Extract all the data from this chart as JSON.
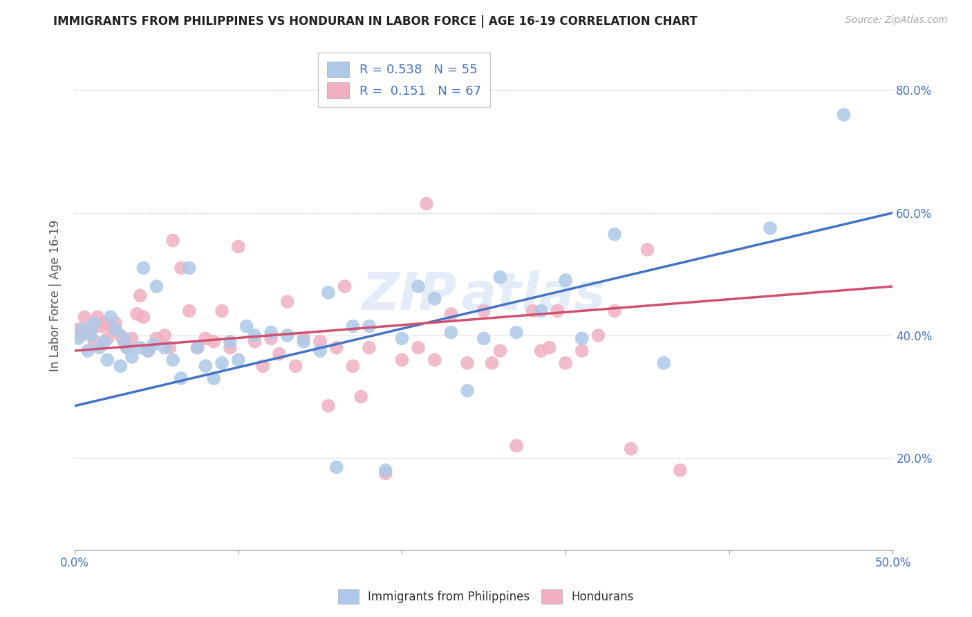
{
  "title": "IMMIGRANTS FROM PHILIPPINES VS HONDURAN IN LABOR FORCE | AGE 16-19 CORRELATION CHART",
  "source": "Source: ZipAtlas.com",
  "ylabel": "In Labor Force | Age 16-19",
  "xmin": 0.0,
  "xmax": 0.5,
  "ymin": 0.05,
  "ymax": 0.88,
  "yticks": [
    0.2,
    0.4,
    0.6,
    0.8
  ],
  "ytick_labels": [
    "20.0%",
    "40.0%",
    "60.0%",
    "80.0%"
  ],
  "xtick_ends": [
    "0.0%",
    "50.0%"
  ],
  "legend_r1": "R = 0.538",
  "legend_n1": "N = 55",
  "legend_r2": "R =  0.151",
  "legend_n2": "N = 67",
  "color_philippines": "#adc8e8",
  "color_honduras": "#f0b0c0",
  "color_line_philippines": "#4472c4",
  "color_line_honduras": "#d05070",
  "philippines_x": [
    0.002,
    0.005,
    0.008,
    0.01,
    0.012,
    0.015,
    0.018,
    0.02,
    0.022,
    0.025,
    0.028,
    0.03,
    0.032,
    0.035,
    0.04,
    0.042,
    0.045,
    0.048,
    0.05,
    0.055,
    0.06,
    0.065,
    0.07,
    0.075,
    0.08,
    0.085,
    0.09,
    0.095,
    0.1,
    0.105,
    0.11,
    0.12,
    0.13,
    0.14,
    0.15,
    0.155,
    0.16,
    0.17,
    0.18,
    0.19,
    0.2,
    0.21,
    0.22,
    0.23,
    0.24,
    0.25,
    0.26,
    0.27,
    0.285,
    0.3,
    0.31,
    0.33,
    0.36,
    0.425,
    0.47
  ],
  "philippines_y": [
    0.395,
    0.41,
    0.375,
    0.4,
    0.42,
    0.38,
    0.39,
    0.36,
    0.43,
    0.41,
    0.35,
    0.395,
    0.38,
    0.365,
    0.38,
    0.51,
    0.375,
    0.385,
    0.48,
    0.38,
    0.36,
    0.33,
    0.51,
    0.38,
    0.35,
    0.33,
    0.355,
    0.39,
    0.36,
    0.415,
    0.4,
    0.405,
    0.4,
    0.39,
    0.375,
    0.47,
    0.185,
    0.415,
    0.415,
    0.18,
    0.395,
    0.48,
    0.46,
    0.405,
    0.31,
    0.395,
    0.495,
    0.405,
    0.44,
    0.49,
    0.395,
    0.565,
    0.355,
    0.575,
    0.76
  ],
  "honduras_x": [
    0.002,
    0.004,
    0.006,
    0.01,
    0.012,
    0.014,
    0.016,
    0.018,
    0.02,
    0.022,
    0.025,
    0.028,
    0.03,
    0.032,
    0.035,
    0.038,
    0.04,
    0.042,
    0.045,
    0.05,
    0.055,
    0.058,
    0.06,
    0.065,
    0.07,
    0.075,
    0.08,
    0.085,
    0.09,
    0.095,
    0.1,
    0.11,
    0.115,
    0.12,
    0.125,
    0.13,
    0.135,
    0.14,
    0.15,
    0.155,
    0.16,
    0.165,
    0.17,
    0.175,
    0.18,
    0.19,
    0.2,
    0.21,
    0.215,
    0.22,
    0.23,
    0.24,
    0.25,
    0.255,
    0.26,
    0.27,
    0.28,
    0.285,
    0.29,
    0.295,
    0.3,
    0.31,
    0.32,
    0.33,
    0.34,
    0.35,
    0.37
  ],
  "honduras_y": [
    0.41,
    0.4,
    0.43,
    0.41,
    0.39,
    0.43,
    0.415,
    0.42,
    0.395,
    0.415,
    0.42,
    0.4,
    0.39,
    0.38,
    0.395,
    0.435,
    0.465,
    0.43,
    0.375,
    0.395,
    0.4,
    0.38,
    0.555,
    0.51,
    0.44,
    0.38,
    0.395,
    0.39,
    0.44,
    0.38,
    0.545,
    0.39,
    0.35,
    0.395,
    0.37,
    0.455,
    0.35,
    0.395,
    0.39,
    0.285,
    0.38,
    0.48,
    0.35,
    0.3,
    0.38,
    0.175,
    0.36,
    0.38,
    0.615,
    0.36,
    0.435,
    0.355,
    0.44,
    0.355,
    0.375,
    0.22,
    0.44,
    0.375,
    0.38,
    0.44,
    0.355,
    0.375,
    0.4,
    0.44,
    0.215,
    0.54,
    0.18
  ],
  "line_ph_x0": 0.0,
  "line_ph_y0": 0.285,
  "line_ph_x1": 0.5,
  "line_ph_y1": 0.6,
  "line_ho_x0": 0.0,
  "line_ho_y0": 0.375,
  "line_ho_x1": 0.5,
  "line_ho_y1": 0.48
}
